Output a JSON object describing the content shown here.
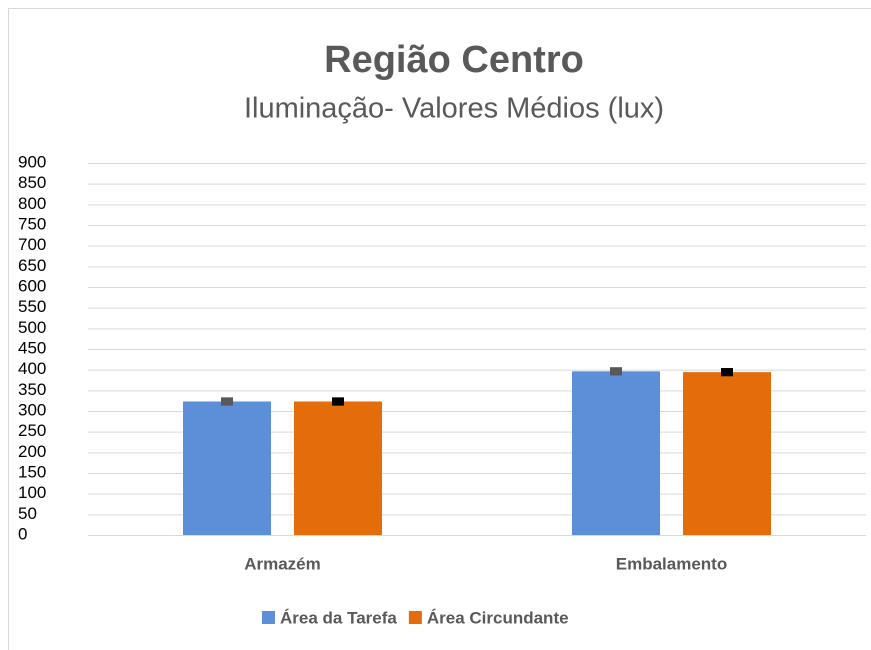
{
  "chart_data": {
    "type": "bar",
    "title": "Região Centro",
    "subtitle": "Iluminação- Valores Médios (lux)",
    "categories": [
      "Armazém",
      "Embalamento"
    ],
    "series": [
      {
        "name": "Área da Tarefa",
        "color": "#5b8fd8",
        "error_color": "#595959",
        "values": [
          323,
          396
        ],
        "errors": [
          10,
          10
        ]
      },
      {
        "name": "Área Circundante",
        "color": "#e46c0a",
        "error_color": "#000000",
        "values": [
          323,
          394
        ],
        "errors": [
          10,
          10
        ]
      }
    ],
    "ylim": [
      0,
      900
    ],
    "yticks": [
      0,
      50,
      100,
      150,
      200,
      250,
      300,
      350,
      400,
      450,
      500,
      550,
      600,
      650,
      700,
      750,
      800,
      850,
      900
    ],
    "grid": true,
    "legend": "bottom"
  }
}
